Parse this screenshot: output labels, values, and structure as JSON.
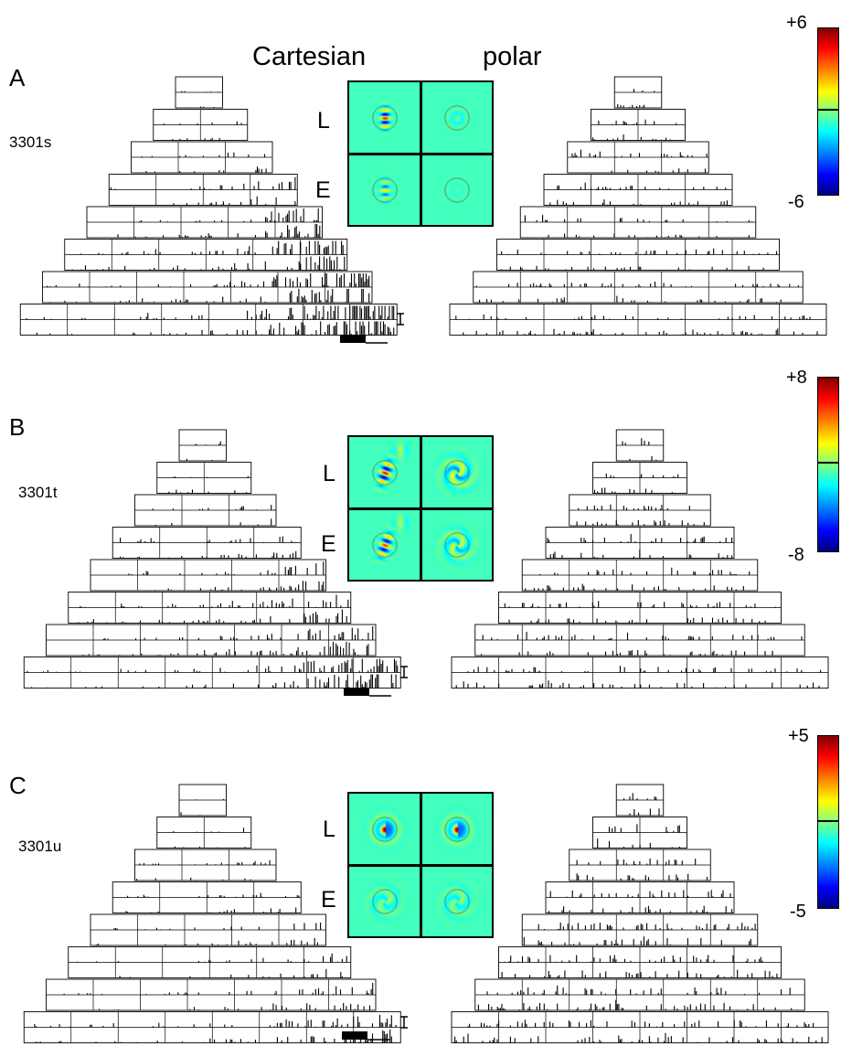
{
  "headers": {
    "cartesian": "Cartesian",
    "polar": "polar"
  },
  "map_row_labels": {
    "top": "L",
    "bottom": "E"
  },
  "panels": [
    {
      "letter": "A",
      "cell": "3301s",
      "colorbar": {
        "max": "+6",
        "min": "-6"
      }
    },
    {
      "letter": "B",
      "cell": "3301t",
      "colorbar": {
        "max": "+8",
        "min": "-8"
      }
    },
    {
      "letter": "C",
      "cell": "3301u",
      "colorbar": {
        "max": "+5",
        "min": "-5"
      }
    }
  ],
  "colors": {
    "map_background": "#77d85a",
    "outline": "#000000"
  },
  "icons": [
    "triangular-histogram-array",
    "receptive-field-map",
    "colorbar",
    "scale-bar"
  ]
}
